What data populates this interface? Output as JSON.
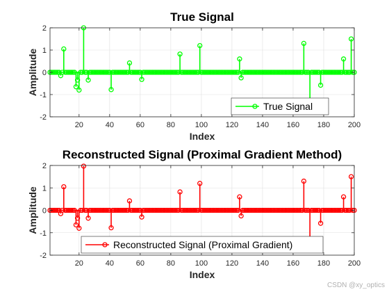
{
  "chart_data": [
    {
      "type": "stem",
      "title": "True Signal",
      "xlabel": "Index",
      "ylabel": "Amplitude",
      "xlim": [
        1,
        200
      ],
      "ylim": [
        -2,
        2
      ],
      "xticks": [
        "20",
        "40",
        "60",
        "80",
        "100",
        "120",
        "140",
        "160",
        "180",
        "200"
      ],
      "yticks": [
        "-2",
        "-1",
        "0",
        "1",
        "2"
      ],
      "grid": true,
      "legend": "bottom-right",
      "series": [
        {
          "name": "True Signal",
          "color": "#00ff00",
          "nonzero": [
            [
              8,
              -0.15
            ],
            [
              10,
              1.05
            ],
            [
              18,
              -0.65
            ],
            [
              19,
              -0.35
            ],
            [
              20,
              -0.8
            ],
            [
              23,
              2.0
            ],
            [
              26,
              -0.35
            ],
            [
              41,
              -0.78
            ],
            [
              53,
              0.42
            ],
            [
              61,
              -0.32
            ],
            [
              86,
              0.82
            ],
            [
              99,
              1.2
            ],
            [
              125,
              0.6
            ],
            [
              126,
              -0.25
            ],
            [
              167,
              1.3
            ],
            [
              171,
              -1.65
            ],
            [
              178,
              -0.58
            ],
            [
              193,
              0.6
            ],
            [
              198,
              1.5
            ]
          ]
        }
      ]
    },
    {
      "type": "stem",
      "title": "Reconstructed Signal (Proximal Gradient Method)",
      "xlabel": "Index",
      "ylabel": "Amplitude",
      "xlim": [
        1,
        200
      ],
      "ylim": [
        -2,
        2
      ],
      "xticks": [
        "20",
        "40",
        "60",
        "80",
        "100",
        "120",
        "140",
        "160",
        "180",
        "200"
      ],
      "yticks": [
        "-2",
        "-1",
        "0",
        "1",
        "2"
      ],
      "grid": true,
      "legend": "bottom-left",
      "series": [
        {
          "name": "Reconstructed Signal (Proximal Gradient)",
          "color": "#ff0000",
          "nonzero": [
            [
              8,
              -0.15
            ],
            [
              10,
              1.05
            ],
            [
              18,
              -0.65
            ],
            [
              19,
              -0.35
            ],
            [
              20,
              -0.8
            ],
            [
              23,
              1.97
            ],
            [
              26,
              -0.35
            ],
            [
              41,
              -0.78
            ],
            [
              53,
              0.42
            ],
            [
              61,
              -0.3
            ],
            [
              86,
              0.82
            ],
            [
              99,
              1.2
            ],
            [
              125,
              0.6
            ],
            [
              126,
              -0.25
            ],
            [
              167,
              1.3
            ],
            [
              171,
              -1.65
            ],
            [
              178,
              -0.58
            ],
            [
              193,
              0.6
            ],
            [
              198,
              1.5
            ]
          ]
        }
      ]
    }
  ],
  "watermark": "CSDN @xy_optics"
}
